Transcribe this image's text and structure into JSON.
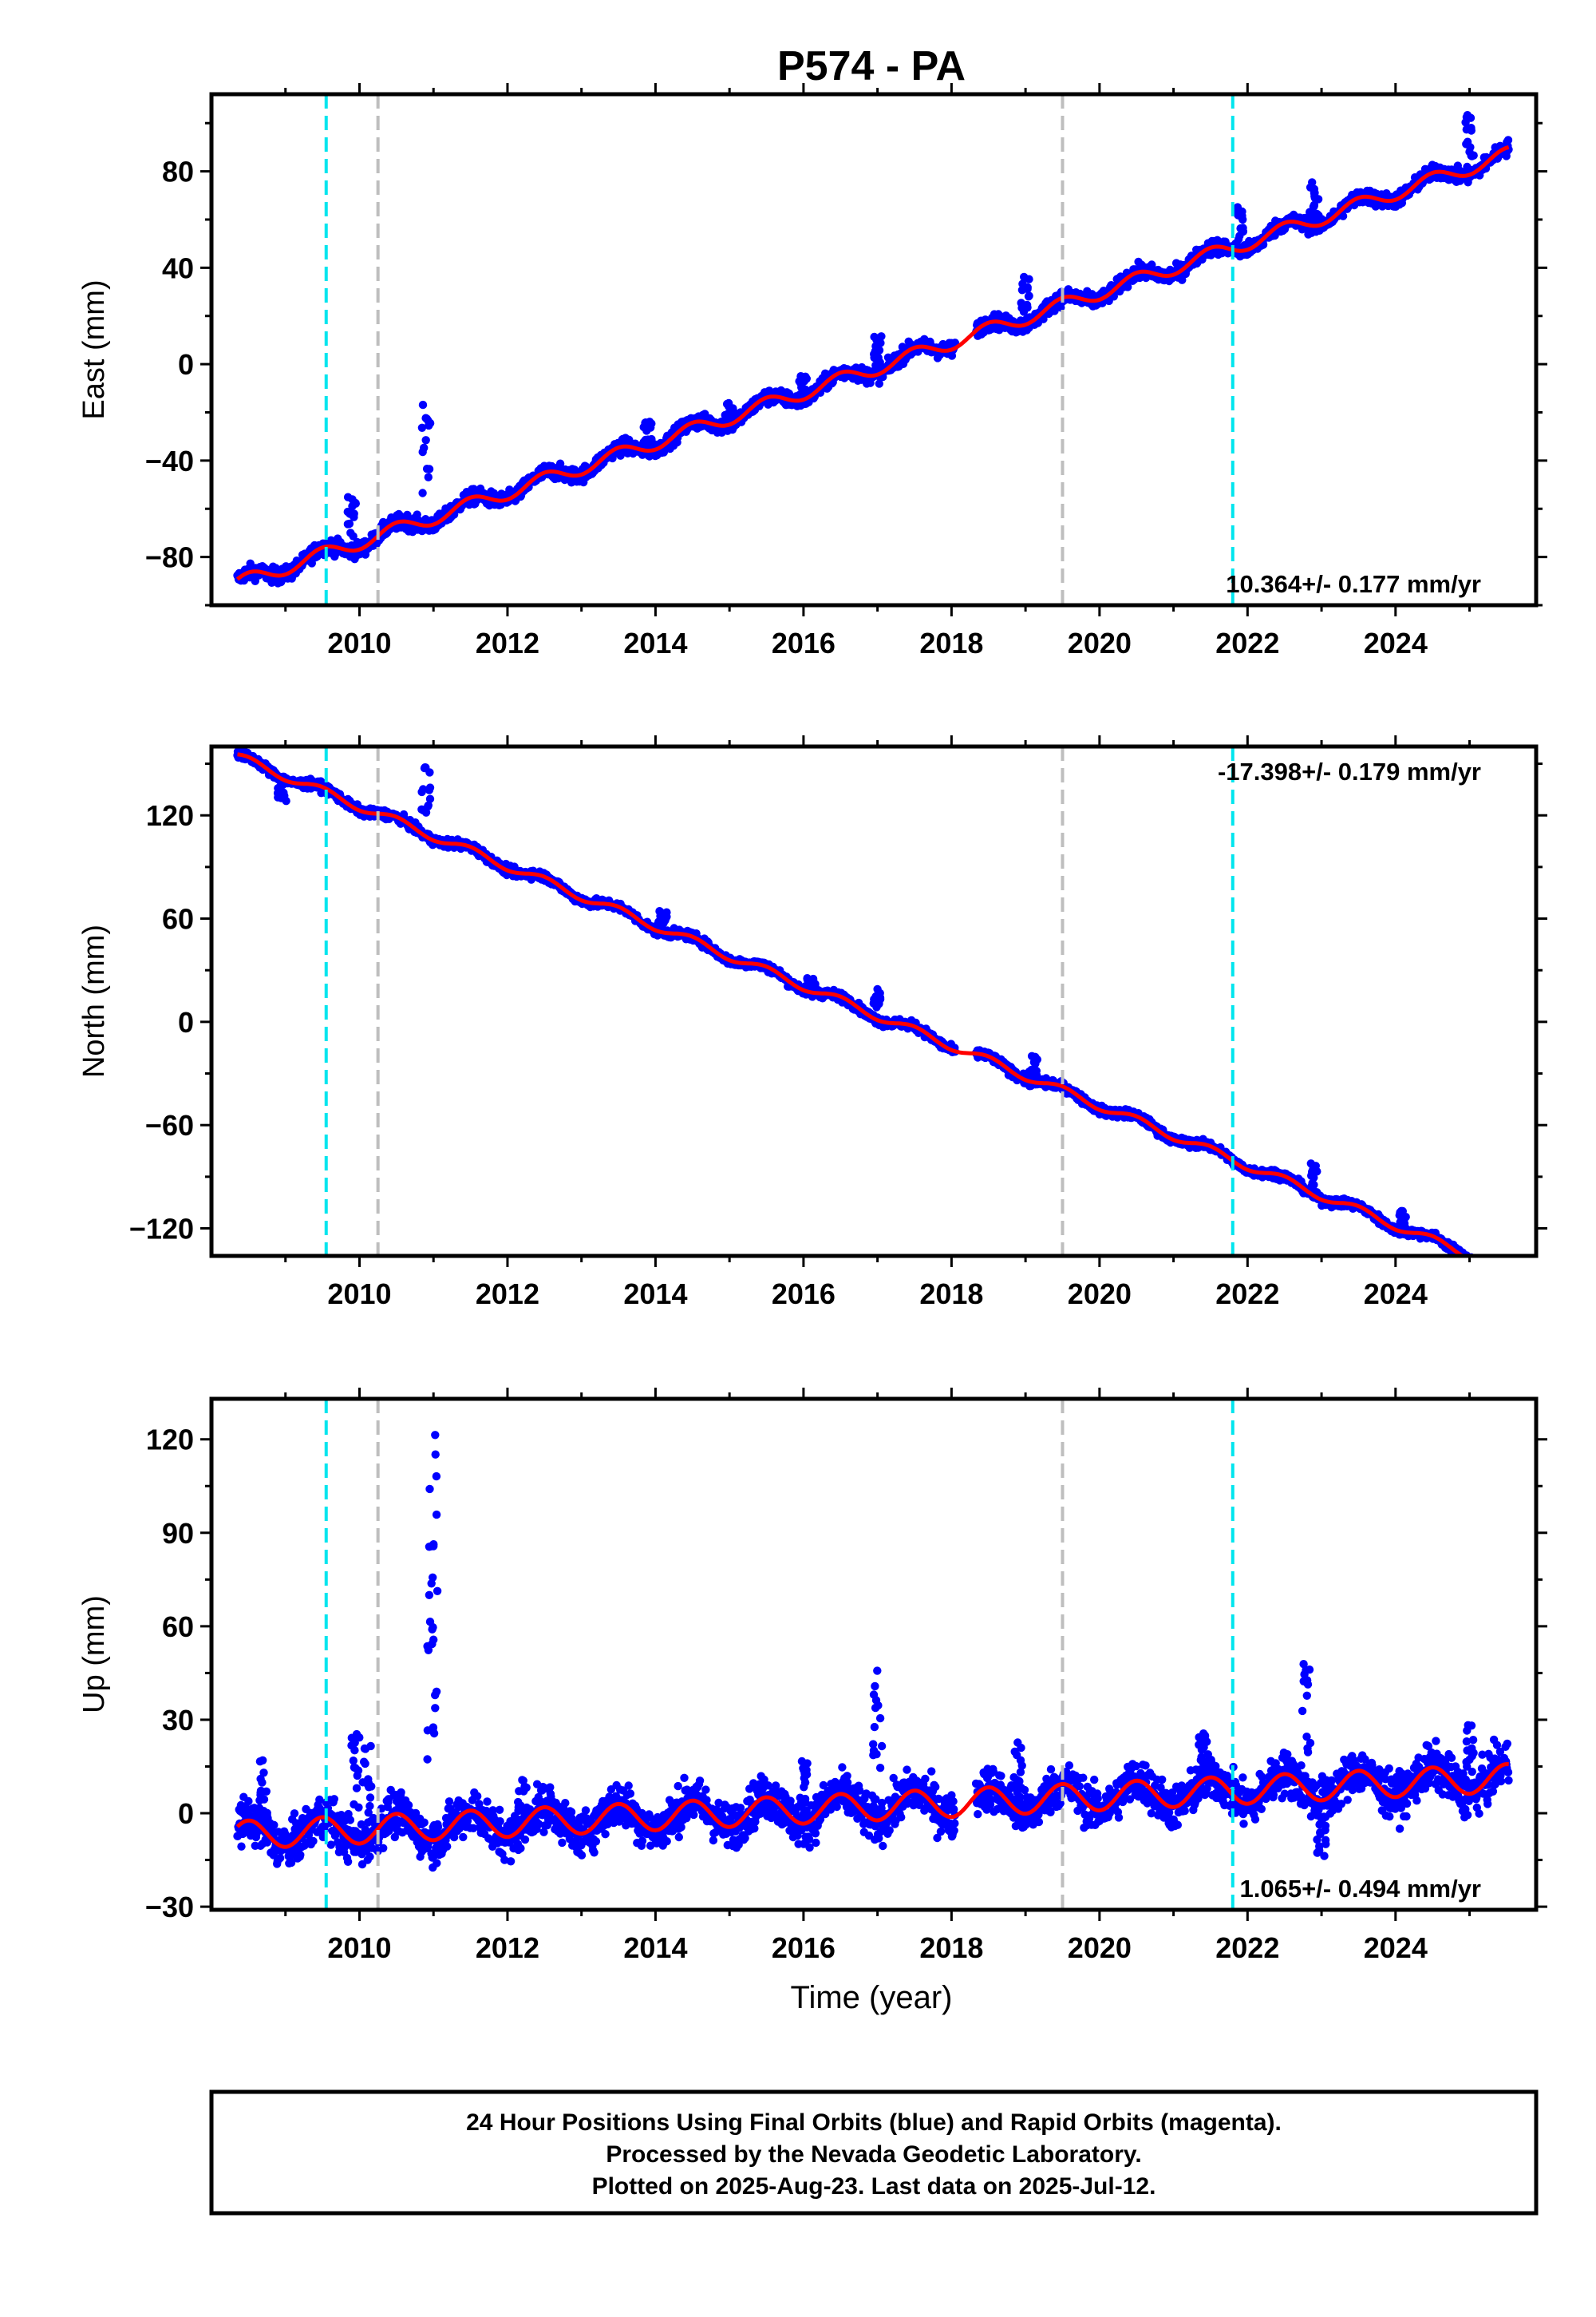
{
  "chart_data": {
    "type": "scatter",
    "title": "P574 - PA",
    "xlabel": "Time (year)",
    "xlim": [
      2008.0,
      2025.9
    ],
    "x_ticks": [
      "2010",
      "2012",
      "2014",
      "2016",
      "2018",
      "2020",
      "2022",
      "2024"
    ],
    "x_tick_values": [
      2010,
      2012,
      2014,
      2016,
      2018,
      2020,
      2022,
      2024
    ],
    "grid": false,
    "series_colors": {
      "final_orbits": "#0000ff",
      "model_fit": "#ff0000"
    },
    "marker_lines": [
      {
        "year": 2009.55,
        "color": "#00e5ee"
      },
      {
        "year": 2010.25,
        "color": "#bebebe"
      },
      {
        "year": 2019.5,
        "color": "#bebebe"
      },
      {
        "year": 2021.8,
        "color": "#00e5ee"
      }
    ],
    "data_start": 2008.35,
    "data_end": 2025.53,
    "panels": [
      {
        "id": "east",
        "ylabel": "East (mm)",
        "ylim": [
          -100,
          112
        ],
        "y_ticks": [
          "80",
          "40",
          "0",
          "−40",
          "−80"
        ],
        "y_tick_values": [
          80,
          40,
          0,
          -40,
          -80
        ],
        "rate_text": "10.364+/- 0.177 mm/yr",
        "rate_position": "bottom-right",
        "rate": 10.364,
        "value_at_data_start": -91,
        "annual_amplitude": 3,
        "scatter": 2.2,
        "outlier_bursts": [
          {
            "year": 2009.9,
            "offset": 22
          },
          {
            "year": 2010.9,
            "offset": 50
          },
          {
            "year": 2013.9,
            "offset": 12
          },
          {
            "year": 2015.0,
            "offset": 9
          },
          {
            "year": 2016.0,
            "offset": 10
          },
          {
            "year": 2017.0,
            "offset": 16
          },
          {
            "year": 2019.0,
            "offset": 20
          },
          {
            "year": 2021.9,
            "offset": 18
          },
          {
            "year": 2022.9,
            "offset": 18
          },
          {
            "year": 2025.0,
            "offset": 25
          }
        ]
      },
      {
        "id": "north",
        "ylabel": "North (mm)",
        "ylim": [
          -136,
          160
        ],
        "y_ticks": [
          "120",
          "60",
          "0",
          "−60",
          "−120"
        ],
        "y_tick_values": [
          120,
          60,
          0,
          -60,
          -120
        ],
        "rate_text": "-17.398+/- 0.179 mm/yr",
        "rate_position": "top-right",
        "rate": -17.398,
        "value_at_data_start": 154,
        "annual_amplitude": 2.5,
        "scatter": 1.8,
        "outlier_bursts": [
          {
            "year": 2008.95,
            "offset": -12
          },
          {
            "year": 2010.9,
            "offset": 40
          },
          {
            "year": 2014.1,
            "offset": 12
          },
          {
            "year": 2016.1,
            "offset": 8
          },
          {
            "year": 2017.0,
            "offset": 18
          },
          {
            "year": 2019.1,
            "offset": 15
          },
          {
            "year": 2022.9,
            "offset": 18
          },
          {
            "year": 2024.1,
            "offset": 12
          }
        ]
      },
      {
        "id": "up",
        "ylabel": "Up (mm)",
        "ylim": [
          -31,
          133
        ],
        "y_ticks": [
          "120",
          "90",
          "60",
          "30",
          "0",
          "−30"
        ],
        "y_tick_values": [
          120,
          90,
          60,
          30,
          0,
          -30
        ],
        "rate_text": "1.065+/- 0.494 mm/yr",
        "rate_position": "bottom-right",
        "rate": 1.065,
        "value_at_data_start": -7,
        "annual_amplitude": 4.5,
        "scatter": 5,
        "outlier_bursts": [
          {
            "year": 2008.7,
            "offset": 22
          },
          {
            "year": 2009.95,
            "offset": 35
          },
          {
            "year": 2010.1,
            "offset": 30
          },
          {
            "year": 2010.97,
            "offset": 95
          },
          {
            "year": 2011.0,
            "offset": 130
          },
          {
            "year": 2012.2,
            "offset": 15
          },
          {
            "year": 2016.0,
            "offset": 20
          },
          {
            "year": 2017.0,
            "offset": 48
          },
          {
            "year": 2018.9,
            "offset": 22
          },
          {
            "year": 2021.4,
            "offset": 15
          },
          {
            "year": 2022.8,
            "offset": 40
          },
          {
            "year": 2023.0,
            "offset": -18
          },
          {
            "year": 2025.0,
            "offset": 22
          }
        ]
      }
    ],
    "footer": [
      "24 Hour Positions Using Final Orbits (blue) and Rapid Orbits (magenta).",
      "Processed by the Nevada Geodetic Laboratory.",
      "Plotted on 2025-Aug-23. Last data on 2025-Jul-12."
    ]
  }
}
